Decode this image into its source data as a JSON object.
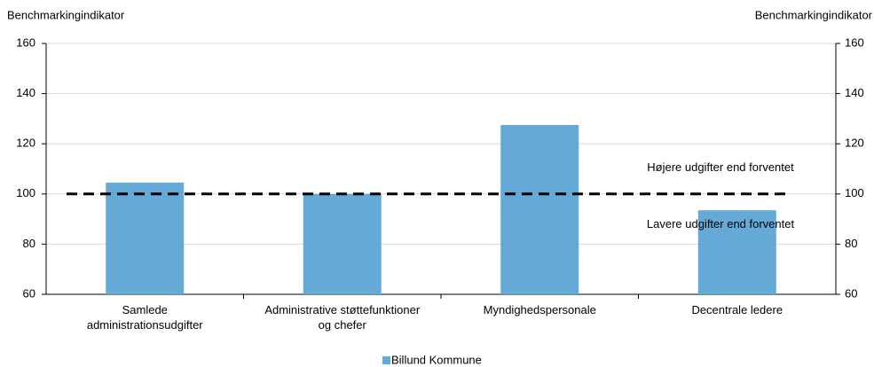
{
  "chart_data": {
    "type": "bar",
    "categories": [
      "Samlede\nadministrationsudgifter",
      "Administrative støttefunktioner\nog chefer",
      "Myndighedspersonale",
      "Decentrale ledere"
    ],
    "series": [
      {
        "name": "Billund Kommune",
        "color": "#65a9d6",
        "values": [
          104.5,
          100,
          127.5,
          93.5
        ]
      }
    ],
    "ylabel": "Benchmarkingindikator",
    "y2label": "Benchmarkingindikator",
    "ylim": [
      60,
      160
    ],
    "yticks": [
      60,
      80,
      100,
      120,
      140,
      160
    ],
    "y2lim": [
      60,
      160
    ],
    "y2ticks": [
      60,
      80,
      100,
      120,
      140,
      160
    ],
    "grid": true,
    "reference_value": 100,
    "annotations": [
      "Højere udgifter end forventet",
      "Lavere udgifter end forventet"
    ],
    "legend": "bottom"
  }
}
